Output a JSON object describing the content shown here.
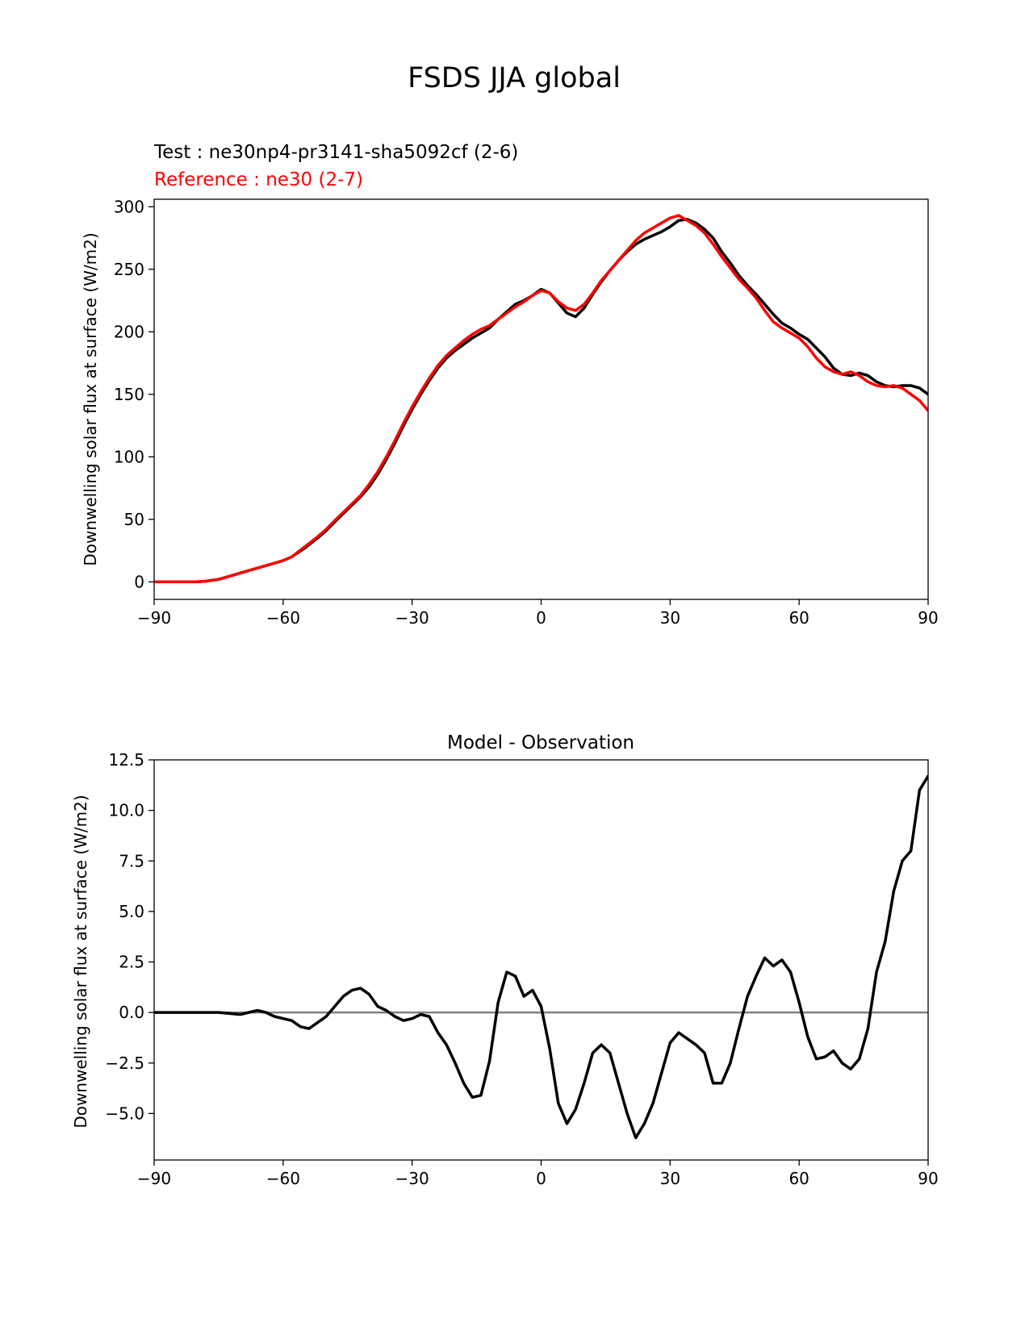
{
  "figure_title": "FSDS JJA global",
  "chart_data": [
    {
      "type": "line",
      "test_label": "Test : ne30np4-pr3141-sha5092cf (2-6)",
      "reference_label": "Reference : ne30 (2-7)",
      "title": "",
      "xlabel": "",
      "ylabel": "Downwelling solar flux at surface (W/m2)",
      "xlim": [
        -90,
        90
      ],
      "ylim": [
        -14,
        306
      ],
      "xticks": [
        -90,
        -60,
        -30,
        0,
        30,
        60,
        90
      ],
      "xtick_labels": [
        "−90",
        "−60",
        "−30",
        "0",
        "30",
        "60",
        "90"
      ],
      "yticks": [
        0,
        50,
        100,
        150,
        200,
        250,
        300
      ],
      "ytick_labels": [
        "0",
        "50",
        "100",
        "150",
        "200",
        "250",
        "300"
      ],
      "series": [
        {
          "name": "Test",
          "color": "#000000",
          "x": [
            -90,
            -85,
            -80,
            -78,
            -75,
            -72,
            -70,
            -68,
            -65,
            -62,
            -60,
            -58,
            -55,
            -52,
            -50,
            -48,
            -45,
            -42,
            -40,
            -38,
            -36,
            -34,
            -32,
            -30,
            -28,
            -26,
            -24,
            -22,
            -20,
            -18,
            -16,
            -14,
            -12,
            -10,
            -8,
            -6,
            -4,
            -2,
            0,
            2,
            4,
            6,
            8,
            10,
            12,
            14,
            16,
            18,
            20,
            22,
            24,
            26,
            28,
            30,
            32,
            34,
            36,
            38,
            40,
            42,
            44,
            46,
            48,
            50,
            52,
            54,
            56,
            58,
            60,
            62,
            64,
            66,
            68,
            70,
            72,
            74,
            76,
            78,
            80,
            82,
            84,
            86,
            88,
            90
          ],
          "y": [
            0,
            0,
            0,
            0.5,
            2,
            5,
            7,
            9,
            12,
            15,
            17,
            20,
            27,
            35,
            41,
            48,
            58,
            68,
            76,
            86,
            98,
            111,
            125,
            138,
            150,
            161,
            171,
            179,
            185,
            190,
            195,
            199,
            203,
            210,
            216,
            222,
            225,
            229,
            234,
            231,
            223,
            215,
            212,
            219,
            230,
            240,
            249,
            257,
            264,
            270,
            274,
            277,
            280,
            284,
            289,
            290,
            287,
            282,
            275,
            264,
            255,
            245,
            237,
            230,
            222,
            214,
            207,
            203,
            198,
            194,
            187,
            180,
            171,
            166,
            165,
            167,
            165,
            160,
            157,
            156,
            157,
            157,
            155,
            150
          ]
        },
        {
          "name": "Reference",
          "color": "#ff0000",
          "x": [
            -90,
            -85,
            -80,
            -78,
            -75,
            -72,
            -70,
            -68,
            -65,
            -62,
            -60,
            -58,
            -55,
            -52,
            -50,
            -48,
            -45,
            -42,
            -40,
            -38,
            -36,
            -34,
            -32,
            -30,
            -28,
            -26,
            -24,
            -22,
            -20,
            -18,
            -16,
            -14,
            -12,
            -10,
            -8,
            -6,
            -4,
            -2,
            0,
            2,
            4,
            6,
            8,
            10,
            12,
            14,
            16,
            18,
            20,
            22,
            24,
            26,
            28,
            30,
            32,
            34,
            36,
            38,
            40,
            42,
            44,
            46,
            48,
            50,
            52,
            54,
            56,
            58,
            60,
            62,
            64,
            66,
            68,
            70,
            72,
            74,
            76,
            78,
            80,
            82,
            84,
            86,
            88,
            90
          ],
          "y": [
            0,
            0,
            0,
            0.5,
            2,
            5,
            7,
            9,
            12,
            15,
            17,
            20,
            28,
            36,
            42,
            49,
            59,
            69,
            78,
            88,
            100,
            113,
            127,
            140,
            152,
            163,
            173,
            181,
            187,
            193,
            198,
            202,
            205,
            210,
            215,
            220,
            224,
            229,
            233,
            231,
            224,
            219,
            217,
            222,
            231,
            241,
            249,
            257,
            265,
            273,
            279,
            283,
            287,
            291,
            293,
            289,
            285,
            279,
            270,
            260,
            251,
            242,
            235,
            227,
            217,
            208,
            203,
            199,
            195,
            188,
            179,
            172,
            168,
            166,
            168,
            165,
            160,
            157,
            156,
            157,
            155,
            150,
            145,
            137
          ]
        }
      ]
    },
    {
      "type": "line",
      "title": "Model - Observation",
      "xlabel": "",
      "ylabel": "Downwelling solar flux at surface (W/m2)",
      "xlim": [
        -90,
        90
      ],
      "ylim": [
        -7.3,
        12.5
      ],
      "xticks": [
        -90,
        -60,
        -30,
        0,
        30,
        60,
        90
      ],
      "xtick_labels": [
        "−90",
        "−60",
        "−30",
        "0",
        "30",
        "60",
        "90"
      ],
      "yticks": [
        -5.0,
        -2.5,
        0.0,
        2.5,
        5.0,
        7.5,
        10.0,
        12.5
      ],
      "ytick_labels": [
        "−5.0",
        "−2.5",
        "0.0",
        "2.5",
        "5.0",
        "7.5",
        "10.0",
        "12.5"
      ],
      "zero_line": {
        "y": 0,
        "color": "#808080"
      },
      "series": [
        {
          "name": "Model - Observation",
          "color": "#000000",
          "x": [
            -90,
            -85,
            -80,
            -75,
            -70,
            -68,
            -66,
            -64,
            -62,
            -60,
            -58,
            -56,
            -54,
            -52,
            -50,
            -48,
            -46,
            -44,
            -42,
            -40,
            -38,
            -36,
            -34,
            -32,
            -30,
            -28,
            -26,
            -24,
            -22,
            -20,
            -18,
            -16,
            -14,
            -12,
            -10,
            -8,
            -6,
            -4,
            -2,
            0,
            2,
            4,
            6,
            8,
            10,
            12,
            14,
            16,
            18,
            20,
            22,
            24,
            26,
            28,
            30,
            32,
            34,
            36,
            38,
            40,
            42,
            44,
            46,
            48,
            50,
            52,
            54,
            56,
            58,
            60,
            62,
            64,
            66,
            68,
            70,
            72,
            74,
            76,
            78,
            80,
            82,
            84,
            86,
            88,
            90
          ],
          "y": [
            0,
            0,
            0,
            0,
            -0.1,
            0,
            0.1,
            0,
            -0.2,
            -0.3,
            -0.4,
            -0.7,
            -0.8,
            -0.5,
            -0.2,
            0.3,
            0.8,
            1.1,
            1.2,
            0.9,
            0.3,
            0.1,
            -0.2,
            -0.4,
            -0.3,
            -0.1,
            -0.2,
            -1.0,
            -1.6,
            -2.5,
            -3.5,
            -4.2,
            -4.1,
            -2.4,
            0.5,
            2.0,
            1.8,
            0.8,
            1.1,
            0.3,
            -1.8,
            -4.5,
            -5.5,
            -4.8,
            -3.5,
            -2.0,
            -1.6,
            -2.0,
            -3.5,
            -5.0,
            -6.2,
            -5.5,
            -4.5,
            -3.0,
            -1.5,
            -1.0,
            -1.3,
            -1.6,
            -2.0,
            -3.5,
            -3.5,
            -2.5,
            -0.8,
            0.8,
            1.8,
            2.7,
            2.3,
            2.6,
            2.0,
            0.5,
            -1.2,
            -2.3,
            -2.2,
            -1.9,
            -2.5,
            -2.8,
            -2.3,
            -0.8,
            2.0,
            3.5,
            6.0,
            7.5,
            8.0,
            11.0,
            11.7
          ]
        }
      ]
    }
  ]
}
